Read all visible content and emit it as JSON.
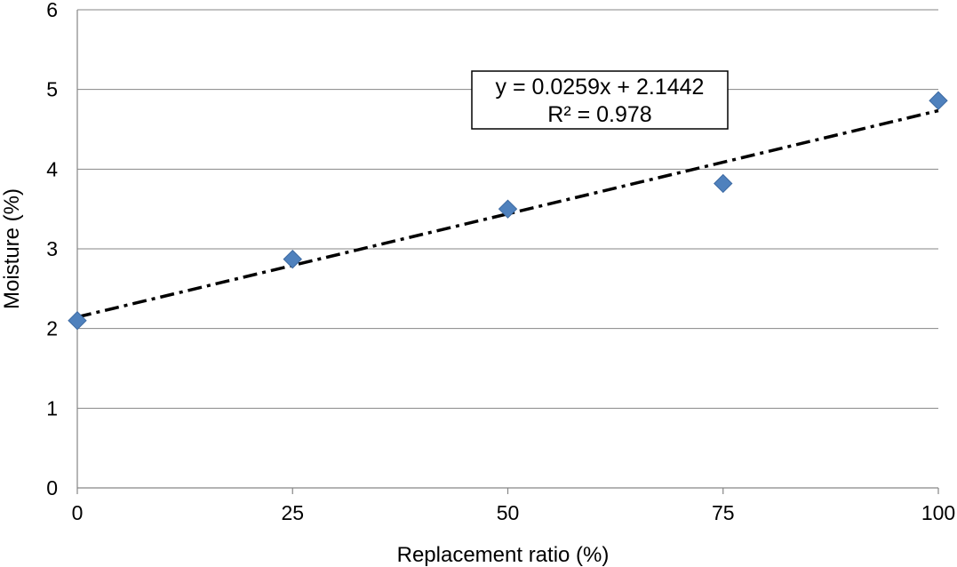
{
  "chart_data": {
    "type": "scatter",
    "xlabel": "Replacement ratio (%)",
    "ylabel": "Moisture (%)",
    "xlim": [
      0,
      100
    ],
    "ylim": [
      0,
      6
    ],
    "x_ticks": [
      "0",
      "25",
      "50",
      "75",
      "100"
    ],
    "y_ticks": [
      "0",
      "1",
      "2",
      "3",
      "4",
      "5",
      "6"
    ],
    "grid": "horizontal",
    "series": [
      {
        "marker": "diamond",
        "color": "#4F81BD",
        "points": [
          {
            "x": 0,
            "y": 2.1
          },
          {
            "x": 25,
            "y": 2.87
          },
          {
            "x": 50,
            "y": 3.5
          },
          {
            "x": 75,
            "y": 3.82
          },
          {
            "x": 100,
            "y": 4.86
          }
        ]
      }
    ],
    "trendline": {
      "type": "linear",
      "slope": 0.0259,
      "intercept": 2.1442,
      "style": "dash-dot",
      "color": "#000000",
      "equation_label": "y = 0.0259x + 2.1442",
      "r2_label": "R² = 0.978"
    }
  }
}
